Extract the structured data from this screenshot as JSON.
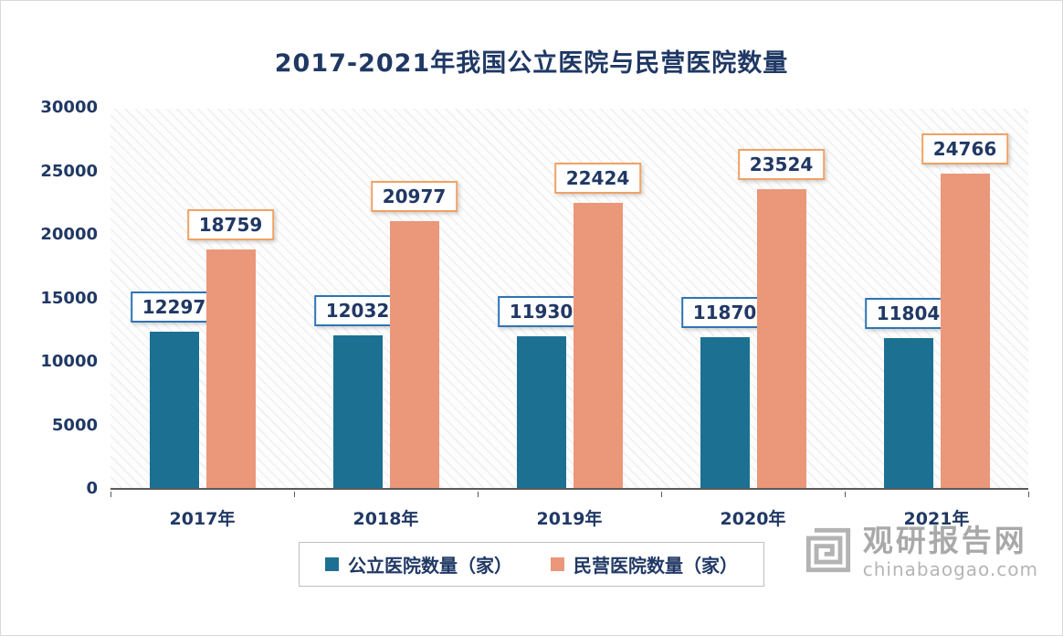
{
  "chart_data": {
    "type": "bar",
    "title": "2017-2021年我国公立医院与民营医院数量",
    "categories": [
      "2017年",
      "2018年",
      "2019年",
      "2020年",
      "2021年"
    ],
    "series": [
      {
        "name": "公立医院数量（家）",
        "values": [
          12297,
          12032,
          11930,
          11870,
          11804
        ],
        "color": "#1c7193",
        "label_border": "#2e74b5"
      },
      {
        "name": "民营医院数量（家）",
        "values": [
          18759,
          20977,
          22424,
          23524,
          24766
        ],
        "color": "#eb9779",
        "label_border": "#f0a264"
      }
    ],
    "ylim": [
      0,
      30000
    ],
    "yticks": [
      0,
      5000,
      10000,
      15000,
      20000,
      25000,
      30000
    ],
    "grid": false,
    "legend_position": "bottom"
  },
  "watermark": {
    "brand": "观研报告网",
    "domain": "chinabaogao.com"
  },
  "colors": {
    "title_text": "#1f3864",
    "axis_text": "#203864",
    "public_bar": "#1c7193",
    "private_bar": "#eb9779",
    "public_label_border": "#2e74b5",
    "private_label_border": "#f0a264",
    "watermark_gray": "#b5b5b5"
  }
}
